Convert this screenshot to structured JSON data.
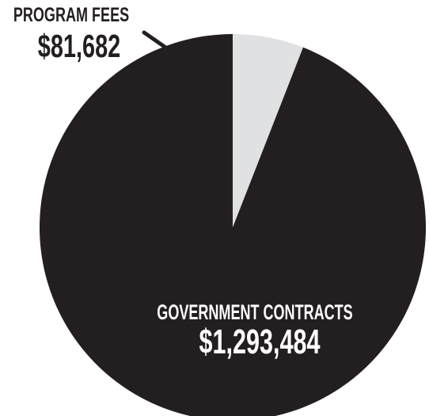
{
  "chart_data": {
    "type": "pie",
    "slices": [
      {
        "label": "PROGRAM FEES",
        "value": 81682,
        "value_label": "$81,682",
        "color": "#e0e1e3"
      },
      {
        "label": "GOVERNMENT CONTRACTS",
        "value": 1293484,
        "value_label": "$1,293,484",
        "color": "#231f20"
      }
    ],
    "start_angle_deg": 0,
    "direction": "clockwise"
  }
}
